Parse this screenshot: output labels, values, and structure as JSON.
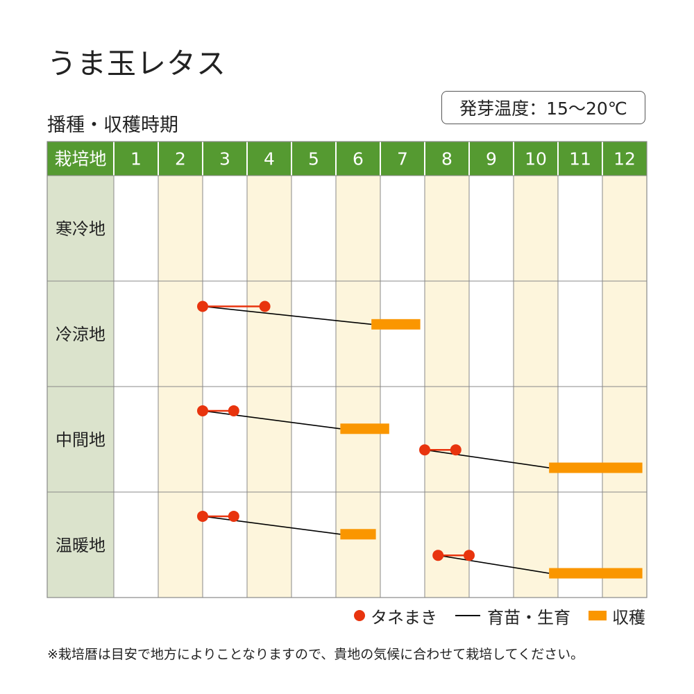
{
  "title": "うま玉レタス",
  "subtitle": "播種・収穫時期",
  "germination_badge": "発芽温度：15〜20℃",
  "note": "※栽培暦は目安で地方によりことなりますので、貴地の気候に合わせて栽培してください。",
  "colors": {
    "header_green": "#559a31",
    "region_column": "#dbe3cc",
    "stripe": "#fdf5dc",
    "sowing_red": "#e8340e",
    "harvest_orange": "#fa9600",
    "nursery_line": "#000000",
    "grid": "#888888"
  },
  "chart_data": {
    "type": "table",
    "header_label": "栽培地",
    "months": [
      "1",
      "2",
      "3",
      "4",
      "5",
      "6",
      "7",
      "8",
      "9",
      "10",
      "11",
      "12"
    ],
    "legend": {
      "sowing": "タネまき",
      "nursery": "育苗・生育",
      "harvest": "収穫"
    },
    "regions": [
      {
        "name": "寒冷地",
        "schedules": []
      },
      {
        "name": "冷涼地",
        "schedules": [
          {
            "sowing": [
              3.0,
              4.4
            ],
            "harvest": [
              6.8,
              7.9
            ]
          }
        ]
      },
      {
        "name": "中間地",
        "schedules": [
          {
            "sowing": [
              3.0,
              3.7
            ],
            "harvest": [
              6.1,
              7.2
            ]
          },
          {
            "sowing": [
              8.0,
              8.7
            ],
            "harvest": [
              10.8,
              12.9
            ]
          }
        ]
      },
      {
        "name": "温暖地",
        "schedules": [
          {
            "sowing": [
              3.0,
              3.7
            ],
            "harvest": [
              6.1,
              6.9
            ]
          },
          {
            "sowing": [
              8.3,
              9.0
            ],
            "harvest": [
              10.8,
              12.9
            ]
          }
        ]
      }
    ]
  }
}
